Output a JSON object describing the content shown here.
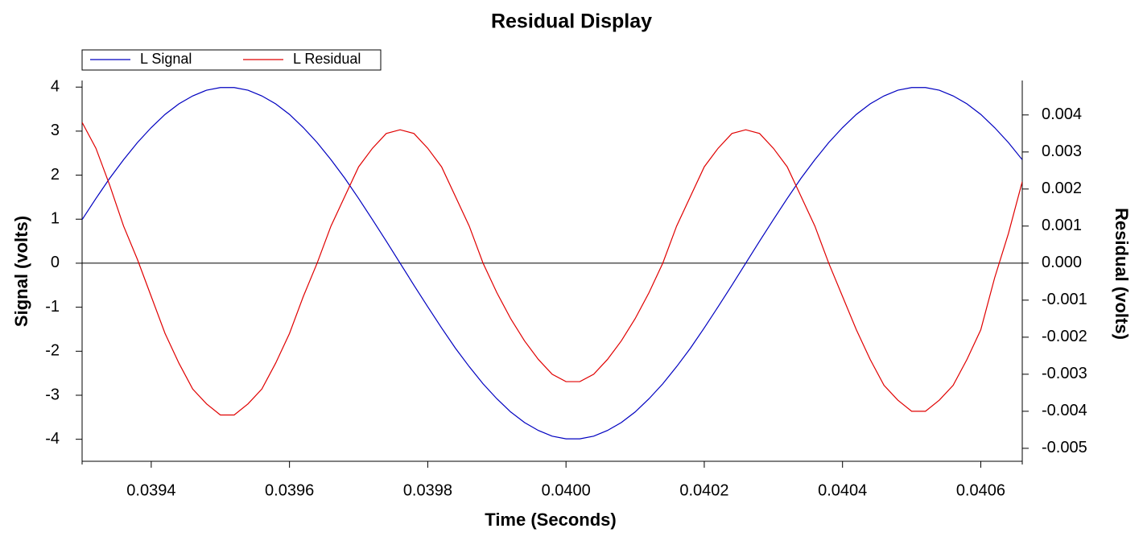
{
  "chart_data": {
    "type": "line",
    "title": "Residual Display",
    "xlabel": "Time (Seconds)",
    "ylabel": "Signal (volts)",
    "y2label": "Residual (volts)",
    "legend": "above-left",
    "reference_line": 0,
    "xlim": [
      0.0393,
      0.04066
    ],
    "ylim": [
      -4.5,
      4.15
    ],
    "y2lim": [
      -0.00535,
      0.00493
    ],
    "xticks": [
      0.0394,
      0.0396,
      0.0398,
      {
        "value": 0.04,
        "label": "0.0400"
      },
      0.0402,
      0.0404,
      0.0406
    ],
    "yticks": [
      -4,
      -3,
      -2,
      -1,
      0,
      1,
      2,
      3,
      4
    ],
    "y2ticks": [
      -0.005,
      -0.004,
      -0.003,
      -0.002,
      -0.001,
      {
        "value": 0,
        "label": "0.000"
      },
      0.001,
      0.002,
      0.003,
      0.004
    ],
    "x": [
      0.0393,
      0.03932,
      0.03934,
      0.03936,
      0.03938,
      0.0394,
      0.03942,
      0.03944,
      0.03946,
      0.03948,
      0.0395,
      0.03952,
      0.03954,
      0.03956,
      0.03958,
      0.0396,
      0.03962,
      0.03964,
      0.03966,
      0.03968,
      0.0397,
      0.03972,
      0.03974,
      0.03976,
      0.03978,
      0.0398,
      0.03982,
      0.03984,
      0.03986,
      0.03988,
      0.0399,
      0.03992,
      0.03994,
      0.03996,
      0.03998,
      0.04,
      0.04002,
      0.04004,
      0.04006,
      0.04008,
      0.0401,
      0.04012,
      0.04014,
      0.04016,
      0.04018,
      0.0402,
      0.04022,
      0.04024,
      0.04026,
      0.04028,
      0.0403,
      0.04032,
      0.04034,
      0.04036,
      0.04038,
      0.0404,
      0.04042,
      0.04044,
      0.04046,
      0.04048,
      0.0405,
      0.04052,
      0.04054,
      0.04056,
      0.04058,
      0.0406,
      0.04062,
      0.04064,
      0.04066
    ],
    "series": [
      {
        "name": "L Signal",
        "color": "#0000c0",
        "axis": "y",
        "values": [
          0.99,
          1.47,
          1.93,
          2.35,
          2.74,
          3.08,
          3.38,
          3.62,
          3.8,
          3.93,
          3.99,
          3.99,
          3.93,
          3.8,
          3.62,
          3.38,
          3.08,
          2.74,
          2.35,
          1.93,
          1.47,
          0.99,
          0.5,
          0,
          -0.5,
          -0.99,
          -1.47,
          -1.93,
          -2.35,
          -2.74,
          -3.08,
          -3.38,
          -3.62,
          -3.8,
          -3.93,
          -3.99,
          -3.99,
          -3.93,
          -3.8,
          -3.62,
          -3.38,
          -3.08,
          -2.74,
          -2.35,
          -1.93,
          -1.47,
          -0.99,
          -0.5,
          0,
          0.5,
          0.99,
          1.47,
          1.93,
          2.35,
          2.74,
          3.08,
          3.38,
          3.62,
          3.8,
          3.93,
          3.99,
          3.99,
          3.93,
          3.8,
          3.62,
          3.38,
          3.08,
          2.74,
          2.35
        ]
      },
      {
        "name": "L Residual",
        "color": "#e00000",
        "axis": "y2",
        "values": [
          0.0038,
          0.0031,
          0.0021,
          0.001,
          0.0001,
          -0.0009,
          -0.0019,
          -0.0027,
          -0.0034,
          -0.0038,
          -0.0041,
          -0.0041,
          -0.0038,
          -0.0034,
          -0.0027,
          -0.0019,
          -0.0009,
          0,
          0.001,
          0.0018,
          0.0026,
          0.0031,
          0.0035,
          0.0036,
          0.0035,
          0.0031,
          0.0026,
          0.0018,
          0.001,
          0,
          -0.0008,
          -0.0015,
          -0.0021,
          -0.0026,
          -0.003,
          -0.0032,
          -0.0032,
          -0.003,
          -0.0026,
          -0.0021,
          -0.0015,
          -0.0008,
          0,
          0.001,
          0.0018,
          0.0026,
          0.0031,
          0.0035,
          0.0036,
          0.0035,
          0.0031,
          0.0026,
          0.0018,
          0.001,
          0,
          -0.0009,
          -0.0018,
          -0.0026,
          -0.0033,
          -0.0037,
          -0.004,
          -0.004,
          -0.0037,
          -0.0033,
          -0.0026,
          -0.0018,
          -0.0004,
          0.0008,
          0.0022
        ]
      }
    ]
  }
}
